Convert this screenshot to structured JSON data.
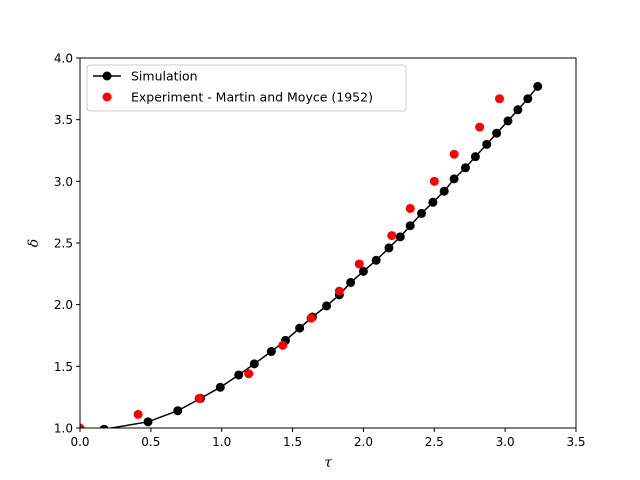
{
  "chart_data": {
    "type": "scatter",
    "xlabel": "τ",
    "ylabel": "δ",
    "xlim": [
      0.0,
      3.5
    ],
    "ylim": [
      1.0,
      4.0
    ],
    "xticks": [
      "0.0",
      "0.5",
      "1.0",
      "1.5",
      "2.0",
      "2.5",
      "3.0",
      "3.5"
    ],
    "yticks": [
      "1.0",
      "1.5",
      "2.0",
      "2.5",
      "3.0",
      "3.5",
      "4.0"
    ],
    "xtick_values": [
      0.0,
      0.5,
      1.0,
      1.5,
      2.0,
      2.5,
      3.0,
      3.5
    ],
    "ytick_values": [
      1.0,
      1.5,
      2.0,
      2.5,
      3.0,
      3.5,
      4.0
    ],
    "grid": false,
    "legend_position": "top-left",
    "series": [
      {
        "name": "Simulation",
        "style": "line-marker",
        "color": "#000000",
        "x": [
          0.0,
          0.17,
          0.48,
          0.69,
          0.85,
          0.99,
          1.12,
          1.23,
          1.35,
          1.45,
          1.55,
          1.64,
          1.74,
          1.83,
          1.91,
          2.0,
          2.09,
          2.18,
          2.26,
          2.33,
          2.41,
          2.49,
          2.57,
          2.64,
          2.72,
          2.79,
          2.87,
          2.94,
          3.02,
          3.09,
          3.16,
          3.23
        ],
        "y": [
          0.95,
          0.99,
          1.05,
          1.14,
          1.24,
          1.33,
          1.43,
          1.52,
          1.62,
          1.71,
          1.81,
          1.9,
          1.99,
          2.08,
          2.18,
          2.27,
          2.36,
          2.46,
          2.55,
          2.64,
          2.74,
          2.83,
          2.92,
          3.02,
          3.11,
          3.2,
          3.3,
          3.39,
          3.49,
          3.58,
          3.67,
          3.77
        ]
      },
      {
        "name": "Experiment - Martin and Moyce (1952)",
        "style": "marker",
        "color": "#ff0000",
        "x": [
          0.0,
          0.41,
          0.84,
          1.19,
          1.43,
          1.63,
          1.83,
          1.97,
          2.2,
          2.33,
          2.5,
          2.64,
          2.82,
          2.96
        ],
        "y": [
          1.0,
          1.11,
          1.24,
          1.44,
          1.67,
          1.89,
          2.11,
          2.33,
          2.56,
          2.78,
          3.0,
          3.22,
          3.44,
          3.67
        ]
      }
    ]
  }
}
